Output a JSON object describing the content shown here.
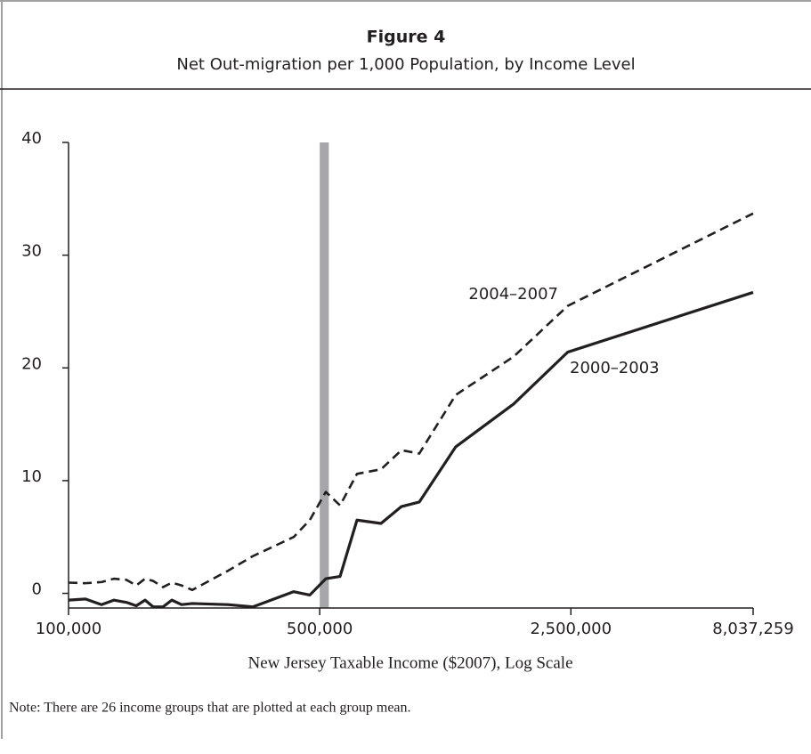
{
  "chart_data": {
    "type": "line",
    "title": "Figure 4",
    "subtitle": "Net Out-migration per 1,000 Population, by Income Level",
    "x_label": "New Jersey Taxable Income ($2007), Log Scale",
    "note": "Note: There are 26 income groups that are plotted at each group mean.",
    "x_scale": "log",
    "x": [
      100000,
      111450,
      123520,
      133790,
      144880,
      154290,
      163310,
      172000,
      183130,
      193800,
      206360,
      221010,
      277560,
      325700,
      423300,
      469200,
      519900,
      569600,
      634900,
      740500,
      844100,
      946200,
      1195300,
      1732500,
      2450000,
      8037259
    ],
    "series": [
      {
        "name": "2004–2007",
        "color": "#231f20",
        "line_style": "dashed",
        "values": [
          0.95,
          0.9,
          1.0,
          1.3,
          1.2,
          0.7,
          1.3,
          1.1,
          0.55,
          0.95,
          0.7,
          0.3,
          2.0,
          3.3,
          5.0,
          6.5,
          9.0,
          7.8,
          10.6,
          11.0,
          12.7,
          12.4,
          17.6,
          21.0,
          25.5,
          33.7
        ]
      },
      {
        "name": "2000–2003",
        "color": "#231f20",
        "line_style": "solid",
        "values": [
          -0.6,
          -0.5,
          -1.0,
          -0.6,
          -0.8,
          -1.1,
          -0.6,
          -1.2,
          -1.2,
          -0.6,
          -1.0,
          -0.9,
          -1.0,
          -1.2,
          0.15,
          -0.15,
          1.3,
          1.5,
          6.5,
          6.2,
          7.7,
          8.1,
          13.0,
          16.8,
          21.4,
          26.7
        ]
      }
    ],
    "shaded_band": {
      "xmin": 500000,
      "xmax": 530000,
      "color": "#a7a7ab"
    },
    "xlim": [
      100000,
      8037259
    ],
    "xticks": [
      {
        "value": 100000,
        "label": "100,000"
      },
      {
        "value": 500000,
        "label": "500,000"
      },
      {
        "value": 2500000,
        "label": "2,500,000"
      },
      {
        "value": 8037259,
        "label": "8,037,259"
      }
    ],
    "ylim": [
      -1.3,
      40
    ],
    "yticks": [
      0,
      10,
      20,
      30,
      40
    ],
    "grid": false
  }
}
